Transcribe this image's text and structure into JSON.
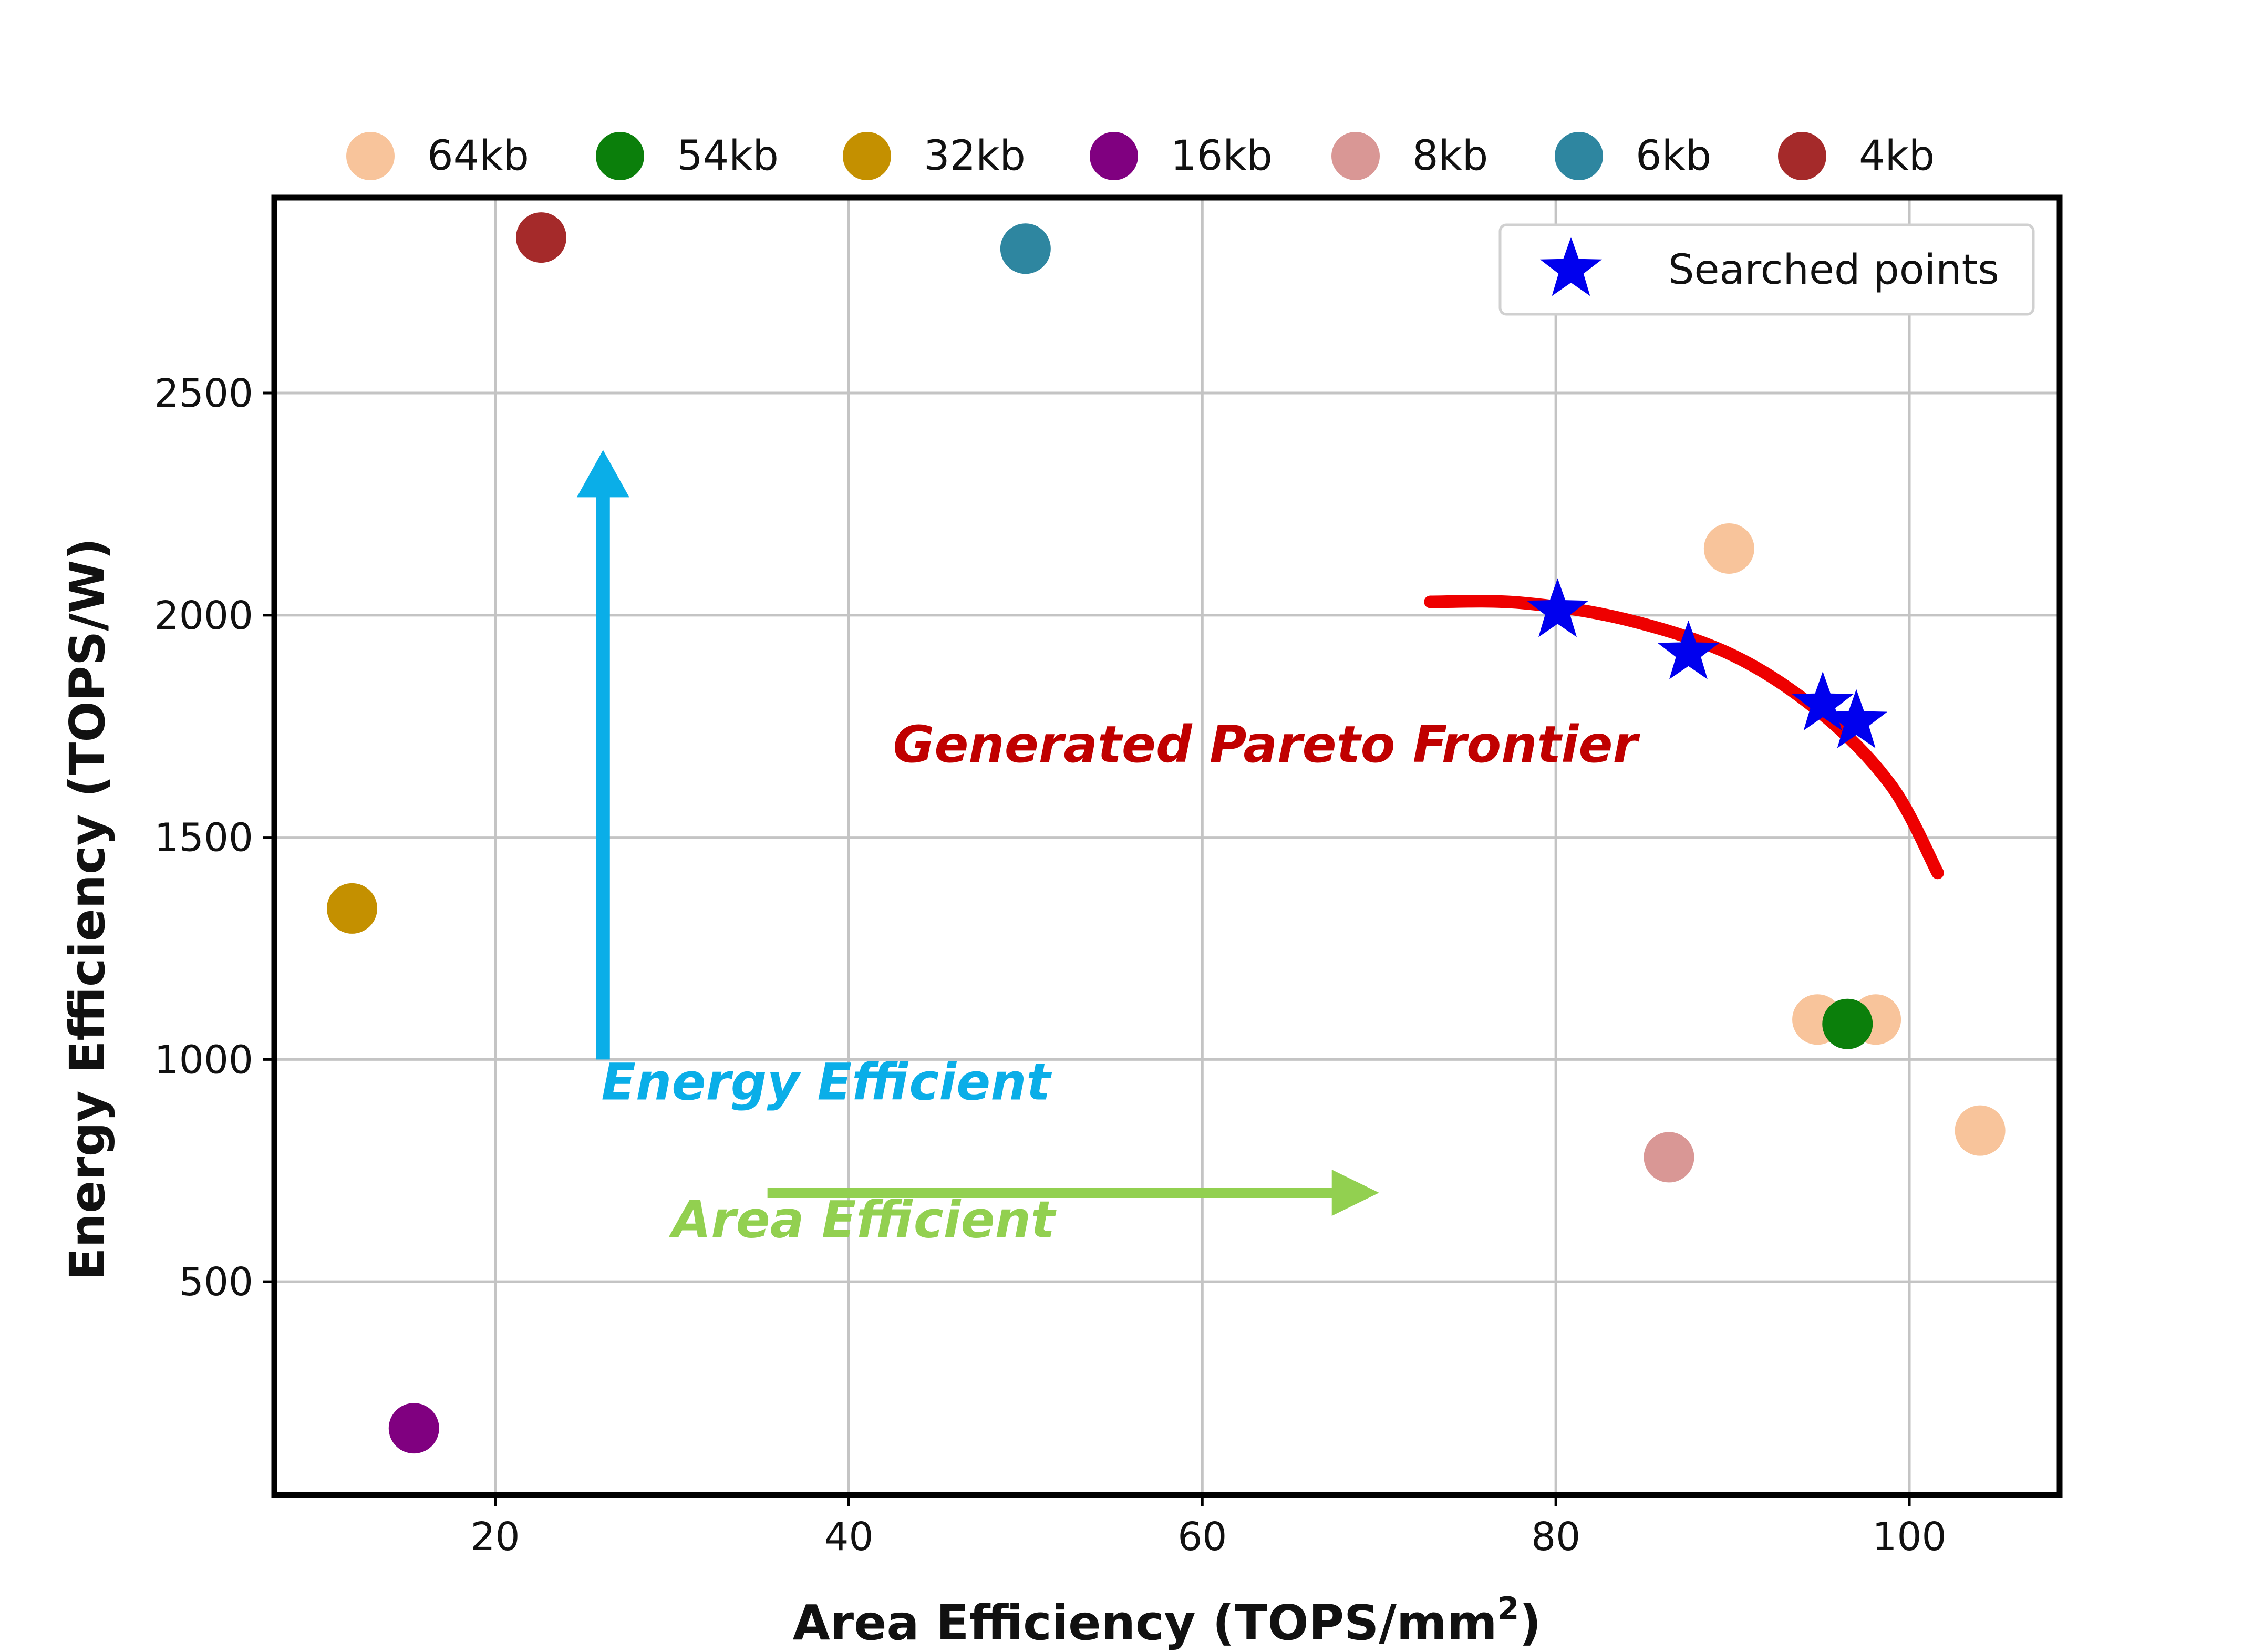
{
  "chart_data": {
    "type": "scatter",
    "title": "",
    "xlabel": "Area Efficiency (TOPS/mm",
    "xlabel_superscript": "2",
    "xlabel_close": ")",
    "ylabel": "Energy Efficiency (TOPS/W)",
    "xlim": [
      7.5,
      108.5
    ],
    "ylim": [
      20,
      2940
    ],
    "xticks": [
      20,
      40,
      60,
      80,
      100
    ],
    "yticks": [
      500,
      1000,
      1500,
      2000,
      2500
    ],
    "grid": true,
    "legend_position": "top",
    "series": [
      {
        "name": "64kb",
        "color": "#f8c49b",
        "points": [
          [
            89.8,
            2150
          ],
          [
            94.8,
            1090
          ],
          [
            98.1,
            1090
          ],
          [
            104,
            840
          ]
        ]
      },
      {
        "name": "54kb",
        "color": "#0b7f0b",
        "points": [
          [
            96.5,
            1080
          ]
        ]
      },
      {
        "name": "32kb",
        "color": "#c49000",
        "points": [
          [
            11.9,
            1340
          ]
        ]
      },
      {
        "name": "16kb",
        "color": "#800080",
        "points": [
          [
            15.4,
            170
          ]
        ]
      },
      {
        "name": "8kb",
        "color": "#d99795",
        "points": [
          [
            86.4,
            780
          ]
        ]
      },
      {
        "name": "6kb",
        "color": "#2e86a0",
        "points": [
          [
            50,
            2825
          ]
        ]
      },
      {
        "name": "4kb",
        "color": "#a52a2a",
        "points": [
          [
            22.6,
            2850
          ]
        ]
      }
    ],
    "searched_points": {
      "name": "Searched points",
      "color": "#0000ee",
      "points": [
        [
          80.1,
          2010
        ],
        [
          87.5,
          1915
        ],
        [
          95.1,
          1800
        ],
        [
          97,
          1760
        ]
      ]
    },
    "pareto_frontier": {
      "label": "Generated Pareto Frontier",
      "color": "#ee0000",
      "points": [
        [
          72.9,
          2030
        ],
        [
          78,
          2028
        ],
        [
          84,
          1990
        ],
        [
          90,
          1910
        ],
        [
          95,
          1780
        ],
        [
          99,
          1615
        ],
        [
          101.6,
          1420
        ]
      ]
    },
    "annotations": [
      {
        "text": "Energy Efficient",
        "color": "#0aaee8",
        "direction": "up",
        "arrow_from": [
          26.1,
          1000
        ],
        "arrow_to": [
          26.1,
          2360
        ],
        "label_at": [
          26,
          910
        ]
      },
      {
        "text": "Area Efficient",
        "color": "#92d050",
        "direction": "right",
        "arrow_from": [
          35.4,
          700
        ],
        "arrow_to": [
          70,
          700
        ],
        "label_at": [
          30,
          600
        ]
      }
    ]
  }
}
